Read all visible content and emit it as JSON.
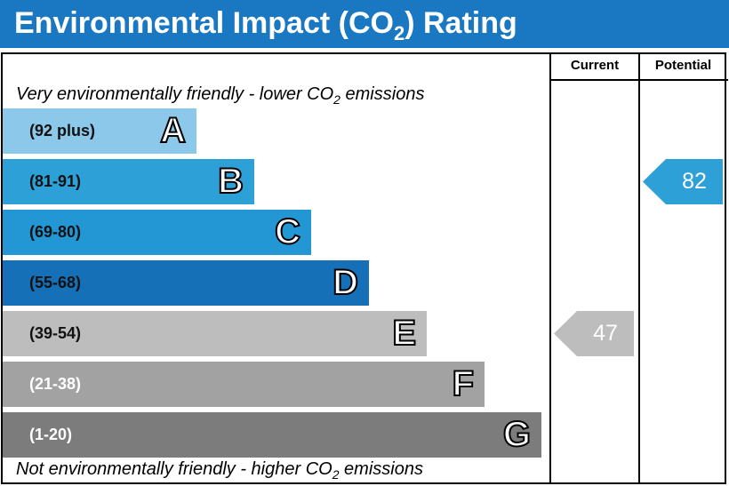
{
  "header": {
    "title_main": "Environmental Impact (CO",
    "title_sub": "2",
    "title_end": ") Rating"
  },
  "columns": {
    "current": "Current",
    "potential": "Potential"
  },
  "top_note": {
    "before": "Very environmentally friendly - lower CO",
    "sub": "2",
    "after": " emissions"
  },
  "bottom_note": {
    "before": "Not environmentally friendly - higher CO",
    "sub": "2",
    "after": " emissions"
  },
  "chart_data": {
    "type": "bar",
    "categories": [
      "A",
      "B",
      "C",
      "D",
      "E",
      "F",
      "G"
    ],
    "ranges": [
      "(92 plus)",
      "(81-91)",
      "(69-80)",
      "(55-68)",
      "(39-54)",
      "(21-38)",
      "(1-20)"
    ],
    "colors": [
      "#8cc8ea",
      "#2ea0d8",
      "#2297d4",
      "#1670b8",
      "#bdbdbd",
      "#a2a2a2",
      "#7c7c7c"
    ],
    "current": {
      "value": 47,
      "band": "E",
      "color": "#bdbdbd"
    },
    "potential": {
      "value": 82,
      "band": "B",
      "color": "#2ea0d8"
    }
  }
}
